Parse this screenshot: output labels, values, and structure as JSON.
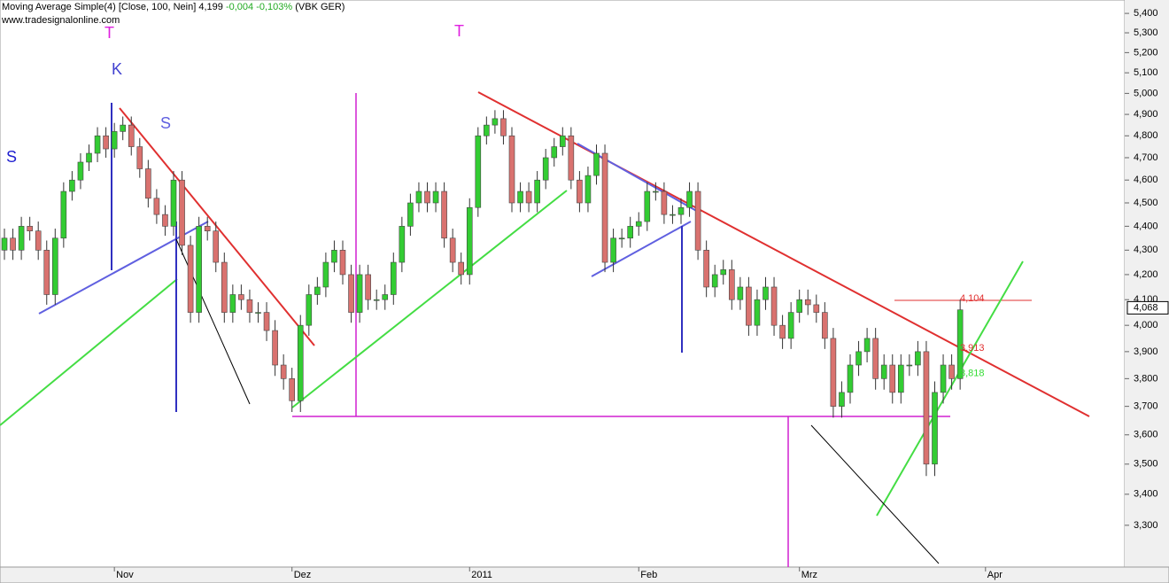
{
  "chart_data": {
    "type": "candlestick",
    "title": "Moving Average Simple(4) [Close, 100, Nein] 4,199",
    "title_change": "-0,004 -0,103%",
    "title_instrument": "(VBK GER)",
    "subtitle": "www.tradesignalonline.com",
    "markers": [
      "T",
      "K",
      "S",
      "T",
      "S"
    ],
    "log_scale": true,
    "up_color": "#33cc33",
    "down_color": "#d9726f",
    "ylim": [
      3.17,
      5.47
    ],
    "yticks": [
      {
        "value": 3.3,
        "label": "3,300"
      },
      {
        "value": 3.4,
        "label": "3,400"
      },
      {
        "value": 3.5,
        "label": "3,500"
      },
      {
        "value": 3.6,
        "label": "3,600"
      },
      {
        "value": 3.7,
        "label": "3,700"
      },
      {
        "value": 3.8,
        "label": "3,800"
      },
      {
        "value": 3.9,
        "label": "3,900"
      },
      {
        "value": 4.0,
        "label": "4,000"
      },
      {
        "value": 4.1,
        "label": "4,100"
      },
      {
        "value": 4.2,
        "label": "4,200"
      },
      {
        "value": 4.3,
        "label": "4,300"
      },
      {
        "value": 4.4,
        "label": "4,400"
      },
      {
        "value": 4.5,
        "label": "4,500"
      },
      {
        "value": 4.6,
        "label": "4,600"
      },
      {
        "value": 4.7,
        "label": "4,700"
      },
      {
        "value": 4.8,
        "label": "4,800"
      },
      {
        "value": 4.9,
        "label": "4,900"
      },
      {
        "value": 5.0,
        "label": "5,000"
      },
      {
        "value": 5.1,
        "label": "5,100"
      },
      {
        "value": 5.2,
        "label": "5,200"
      },
      {
        "value": 5.3,
        "label": "5,300"
      },
      {
        "value": 5.4,
        "label": "5,400"
      }
    ],
    "annotations": [
      {
        "value": 4.104,
        "label": "4,104",
        "color": "#e03030"
      },
      {
        "value": 3.913,
        "label": "3,913",
        "color": "#e03030"
      },
      {
        "value": 3.818,
        "label": "3,818",
        "color": "#33dd33"
      }
    ],
    "last_price": {
      "value": 4.068,
      "label": "4,068"
    },
    "categories": [
      null,
      null,
      null,
      null,
      null,
      null,
      null,
      null,
      null,
      null,
      null,
      null,
      null,
      "Nov",
      null,
      null,
      null,
      null,
      null,
      null,
      null,
      null,
      null,
      null,
      null,
      null,
      null,
      null,
      null,
      null,
      null,
      null,
      null,
      null,
      "Dez",
      null,
      null,
      null,
      null,
      null,
      null,
      null,
      null,
      null,
      null,
      null,
      null,
      null,
      null,
      null,
      null,
      null,
      null,
      null,
      null,
      "2011",
      null,
      null,
      null,
      null,
      null,
      null,
      null,
      null,
      null,
      null,
      null,
      null,
      null,
      null,
      null,
      null,
      null,
      null,
      null,
      "Feb",
      null,
      null,
      null,
      null,
      null,
      null,
      null,
      null,
      null,
      null,
      null,
      null,
      null,
      null,
      null,
      null,
      null,
      null,
      "Mrz",
      null,
      null,
      null,
      null,
      null,
      null,
      null,
      null,
      null,
      null,
      null,
      null,
      null,
      null,
      null,
      null,
      null,
      null,
      null,
      null,
      null,
      "Apr"
    ],
    "open": [
      4.3,
      4.35,
      4.3,
      4.4,
      4.38,
      4.3,
      4.12,
      4.35,
      4.55,
      4.6,
      4.68,
      4.72,
      4.8,
      4.74,
      4.82,
      4.85,
      4.75,
      4.65,
      4.52,
      4.45,
      4.4,
      4.6,
      4.32,
      4.05,
      4.4,
      4.38,
      4.25,
      4.05,
      4.12,
      4.1,
      4.05,
      4.05,
      3.98,
      3.85,
      3.8,
      3.72,
      4.0,
      4.12,
      4.15,
      4.25,
      4.3,
      4.2,
      4.05,
      4.2,
      4.1,
      4.1,
      4.12,
      4.25,
      4.4,
      4.5,
      4.55,
      4.5,
      4.55,
      4.35,
      4.25,
      4.2,
      4.48,
      4.8,
      4.85,
      4.88,
      4.8,
      4.5,
      4.55,
      4.5,
      4.6,
      4.7,
      4.75,
      4.8,
      4.6,
      4.5,
      4.62,
      4.72,
      4.25,
      4.35,
      4.35,
      4.4,
      4.42,
      4.55,
      4.55,
      4.45,
      4.45,
      4.48,
      4.55,
      4.3,
      4.15,
      4.2,
      4.22,
      4.1,
      4.15,
      4.0,
      4.1,
      4.15,
      4.0,
      3.95,
      4.05,
      4.1,
      4.08,
      4.05,
      3.95,
      3.7,
      3.75,
      3.85,
      3.9,
      3.95,
      3.8,
      3.85,
      3.75,
      3.85,
      3.85,
      3.9,
      3.5,
      3.75,
      3.85,
      3.8,
      null,
      null,
      null
    ],
    "high": [
      4.39,
      4.39,
      4.44,
      4.44,
      4.42,
      4.34,
      4.39,
      4.59,
      4.64,
      4.72,
      4.76,
      4.84,
      4.84,
      4.86,
      4.89,
      4.89,
      4.79,
      4.69,
      4.56,
      4.49,
      4.64,
      4.64,
      4.36,
      4.44,
      4.44,
      4.42,
      4.29,
      4.16,
      4.16,
      4.14,
      4.09,
      4.09,
      4.02,
      3.89,
      3.84,
      4.04,
      4.16,
      4.19,
      4.29,
      4.34,
      4.34,
      4.24,
      4.24,
      4.24,
      4.14,
      4.16,
      4.29,
      4.44,
      4.54,
      4.59,
      4.59,
      4.59,
      4.59,
      4.39,
      4.29,
      4.52,
      4.84,
      4.89,
      4.92,
      4.92,
      4.84,
      4.59,
      4.59,
      4.64,
      4.74,
      4.79,
      4.84,
      4.84,
      4.64,
      4.66,
      4.76,
      4.76,
      4.39,
      4.39,
      4.44,
      4.46,
      4.59,
      4.59,
      4.59,
      4.49,
      4.52,
      4.59,
      4.59,
      4.34,
      4.24,
      4.26,
      4.26,
      4.19,
      4.19,
      4.14,
      4.19,
      4.19,
      4.04,
      4.09,
      4.14,
      4.14,
      4.12,
      4.09,
      3.99,
      3.79,
      3.89,
      3.94,
      3.99,
      3.99,
      3.89,
      3.89,
      3.89,
      3.89,
      3.94,
      3.94,
      3.79,
      3.89,
      3.89,
      4.1,
      null,
      null,
      null
    ],
    "low": [
      4.26,
      4.26,
      4.26,
      4.34,
      4.26,
      4.08,
      4.08,
      4.31,
      4.51,
      4.56,
      4.64,
      4.68,
      4.7,
      4.7,
      4.78,
      4.71,
      4.61,
      4.48,
      4.41,
      4.36,
      4.36,
      4.28,
      4.01,
      4.01,
      4.34,
      4.21,
      4.01,
      4.01,
      4.06,
      4.01,
      4.01,
      3.94,
      3.81,
      3.76,
      3.68,
      3.68,
      3.96,
      4.08,
      4.11,
      4.21,
      4.16,
      4.01,
      4.01,
      4.06,
      4.06,
      4.06,
      4.08,
      4.21,
      4.36,
      4.46,
      4.46,
      4.46,
      4.31,
      4.21,
      4.16,
      4.16,
      4.44,
      4.76,
      4.81,
      4.76,
      4.46,
      4.46,
      4.46,
      4.46,
      4.56,
      4.66,
      4.71,
      4.56,
      4.46,
      4.46,
      4.58,
      4.21,
      4.21,
      4.31,
      4.31,
      4.36,
      4.38,
      4.51,
      4.41,
      4.41,
      4.41,
      4.44,
      4.26,
      4.11,
      4.11,
      4.16,
      4.06,
      4.06,
      3.96,
      3.96,
      4.06,
      3.96,
      3.91,
      3.91,
      4.01,
      4.04,
      4.01,
      3.91,
      3.66,
      3.66,
      3.71,
      3.81,
      3.86,
      3.76,
      3.76,
      3.71,
      3.71,
      3.81,
      3.81,
      3.46,
      3.46,
      3.71,
      3.76,
      3.76,
      null,
      null,
      null
    ],
    "close": [
      4.35,
      4.3,
      4.4,
      4.38,
      4.3,
      4.12,
      4.35,
      4.55,
      4.6,
      4.68,
      4.72,
      4.8,
      4.74,
      4.82,
      4.85,
      4.75,
      4.65,
      4.52,
      4.45,
      4.4,
      4.6,
      4.32,
      4.05,
      4.4,
      4.38,
      4.25,
      4.05,
      4.12,
      4.1,
      4.05,
      4.05,
      3.98,
      3.85,
      3.8,
      3.72,
      4.0,
      4.12,
      4.15,
      4.25,
      4.3,
      4.2,
      4.05,
      4.2,
      4.1,
      4.1,
      4.12,
      4.25,
      4.4,
      4.5,
      4.55,
      4.5,
      4.55,
      4.35,
      4.25,
      4.2,
      4.48,
      4.8,
      4.85,
      4.88,
      4.8,
      4.5,
      4.55,
      4.5,
      4.6,
      4.7,
      4.75,
      4.8,
      4.6,
      4.5,
      4.62,
      4.72,
      4.25,
      4.35,
      4.35,
      4.4,
      4.42,
      4.55,
      4.55,
      4.45,
      4.45,
      4.48,
      4.55,
      4.3,
      4.15,
      4.2,
      4.22,
      4.1,
      4.15,
      4.0,
      4.1,
      4.15,
      4.0,
      3.95,
      4.05,
      4.1,
      4.08,
      4.05,
      3.95,
      3.7,
      3.75,
      3.85,
      3.9,
      3.95,
      3.8,
      3.85,
      3.75,
      3.85,
      3.85,
      3.9,
      3.5,
      3.75,
      3.85,
      3.8,
      4.06,
      null,
      null,
      null
    ]
  }
}
